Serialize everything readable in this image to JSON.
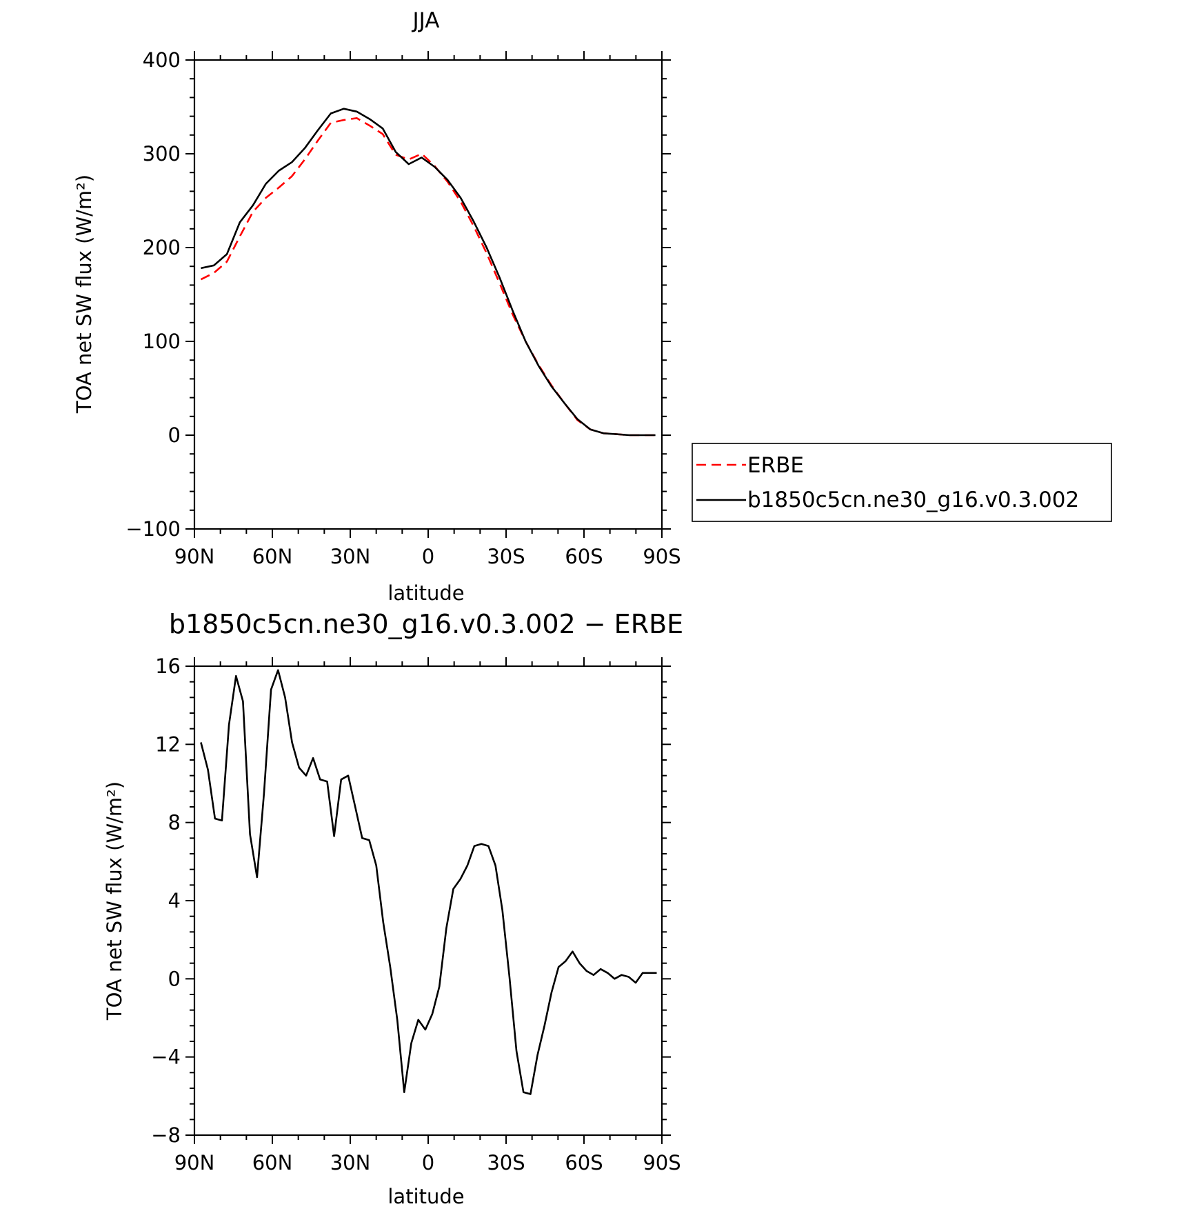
{
  "chart_data": [
    {
      "type": "line",
      "title": "JJA",
      "xlabel": "latitude",
      "ylabel": "TOA net SW flux (W/m²)",
      "xlim": [
        90,
        -90
      ],
      "ylim": [
        -100,
        400
      ],
      "x_ticks": [
        {
          "value": 90,
          "label": "90N"
        },
        {
          "value": 60,
          "label": "60N"
        },
        {
          "value": 30,
          "label": "30N"
        },
        {
          "value": 0,
          "label": "0"
        },
        {
          "value": -30,
          "label": "30S"
        },
        {
          "value": -60,
          "label": "60S"
        },
        {
          "value": -90,
          "label": "90S"
        }
      ],
      "y_ticks": [
        {
          "value": 400,
          "label": "400"
        },
        {
          "value": 300,
          "label": "300"
        },
        {
          "value": 200,
          "label": "200"
        },
        {
          "value": 100,
          "label": "100"
        },
        {
          "value": 0,
          "label": "0"
        },
        {
          "value": -100,
          "label": "−100"
        }
      ],
      "grid": false,
      "legend_position": "right",
      "series": [
        {
          "name": "ERBE",
          "color": "#ff0000",
          "style": "dashed",
          "x": [
            87.5,
            82.5,
            77.5,
            72.5,
            67.5,
            62.5,
            57.5,
            52.5,
            47.5,
            42.5,
            37.5,
            32.5,
            27.5,
            22.5,
            17.5,
            12.5,
            7.5,
            2.5,
            -2.5,
            -7.5,
            -12.5,
            -17.5,
            -22.5,
            -27.5,
            -32.5,
            -37.5,
            -42.5,
            -47.5,
            -52.5,
            -57.5,
            -62.5,
            -67.5,
            -72.5,
            -77.5,
            -82.5,
            -87.5
          ],
          "values": [
            166,
            173,
            185,
            212,
            238,
            253,
            264,
            276,
            294,
            314,
            333,
            336,
            338,
            330,
            321,
            299,
            294,
            300,
            287,
            270,
            249,
            223,
            194,
            162,
            129,
            100,
            75,
            53,
            34,
            16,
            6,
            2,
            1,
            0,
            0,
            0
          ]
        },
        {
          "name": "b1850c5cn.ne30_g16.v0.3.002",
          "color": "#000000",
          "style": "solid",
          "x": [
            87.5,
            82.5,
            77.5,
            72.5,
            67.5,
            62.5,
            57.5,
            52.5,
            47.5,
            42.5,
            37.5,
            32.5,
            27.5,
            22.5,
            17.5,
            12.5,
            7.5,
            2.5,
            -2.5,
            -7.5,
            -12.5,
            -17.5,
            -22.5,
            -27.5,
            -32.5,
            -37.5,
            -42.5,
            -47.5,
            -52.5,
            -57.5,
            -62.5,
            -67.5,
            -72.5,
            -77.5,
            -82.5,
            -87.5
          ],
          "values": [
            178,
            181,
            193,
            227,
            245,
            268,
            282,
            291,
            306,
            325,
            343,
            348,
            345,
            337,
            327,
            302,
            289,
            296,
            286,
            272,
            253,
            228,
            200,
            168,
            133,
            100,
            74,
            52,
            34,
            17,
            6,
            2,
            1,
            0,
            0,
            0
          ]
        }
      ]
    },
    {
      "type": "line",
      "title": "b1850c5cn.ne30_g16.v0.3.002 − ERBE",
      "xlabel": "latitude",
      "ylabel": "TOA net SW flux (W/m²)",
      "xlim": [
        90,
        -90
      ],
      "ylim": [
        -8,
        16
      ],
      "x_ticks": [
        {
          "value": 90,
          "label": "90N"
        },
        {
          "value": 60,
          "label": "60N"
        },
        {
          "value": 30,
          "label": "30N"
        },
        {
          "value": 0,
          "label": "0"
        },
        {
          "value": -30,
          "label": "30S"
        },
        {
          "value": -60,
          "label": "60S"
        },
        {
          "value": -90,
          "label": "90S"
        }
      ],
      "y_ticks": [
        {
          "value": 16,
          "label": "16"
        },
        {
          "value": 12,
          "label": "12"
        },
        {
          "value": 8,
          "label": "8"
        },
        {
          "value": 4,
          "label": "4"
        },
        {
          "value": 0,
          "label": "0"
        },
        {
          "value": -4,
          "label": "−4"
        },
        {
          "value": -8,
          "label": "−8"
        }
      ],
      "grid": false,
      "series": [
        {
          "color": "#000000",
          "style": "solid",
          "x": [
            87.5,
            84.8,
            82.1,
            79.4,
            76.7,
            74.0,
            71.3,
            68.6,
            65.9,
            63.2,
            60.5,
            57.8,
            55.1,
            52.4,
            49.7,
            47.0,
            44.3,
            41.6,
            38.9,
            36.2,
            33.5,
            30.8,
            28.1,
            25.4,
            22.7,
            20.0,
            17.3,
            14.6,
            11.9,
            9.2,
            6.5,
            3.8,
            1.1,
            -1.6,
            -4.3,
            -7.0,
            -9.7,
            -12.4,
            -15.1,
            -17.8,
            -20.5,
            -23.2,
            -25.9,
            -28.6,
            -31.3,
            -34.0,
            -36.7,
            -39.4,
            -42.1,
            -44.8,
            -47.5,
            -50.2,
            -52.9,
            -55.6,
            -58.3,
            -61.0,
            -63.7,
            -66.4,
            -69.1,
            -71.8,
            -74.5,
            -77.2,
            -79.9,
            -82.6,
            -85.3,
            -88.0
          ],
          "values": [
            12.1,
            10.7,
            8.2,
            8.1,
            13.0,
            15.5,
            14.2,
            7.4,
            5.2,
            9.5,
            14.8,
            15.8,
            14.4,
            12.1,
            10.8,
            10.4,
            11.3,
            10.2,
            10.1,
            7.3,
            10.2,
            10.4,
            8.8,
            7.2,
            7.1,
            5.8,
            2.9,
            0.6,
            -2.1,
            -5.8,
            -3.3,
            -2.1,
            -2.6,
            -1.8,
            -0.4,
            2.6,
            4.6,
            5.1,
            5.8,
            6.8,
            6.9,
            6.8,
            5.8,
            3.5,
            0.1,
            -3.7,
            -5.8,
            -5.9,
            -3.9,
            -2.4,
            -0.7,
            0.6,
            0.9,
            1.4,
            0.8,
            0.4,
            0.2,
            0.5,
            0.3,
            0.0,
            0.2,
            0.1,
            -0.2,
            0.3,
            0.3,
            0.3
          ]
        }
      ]
    }
  ]
}
